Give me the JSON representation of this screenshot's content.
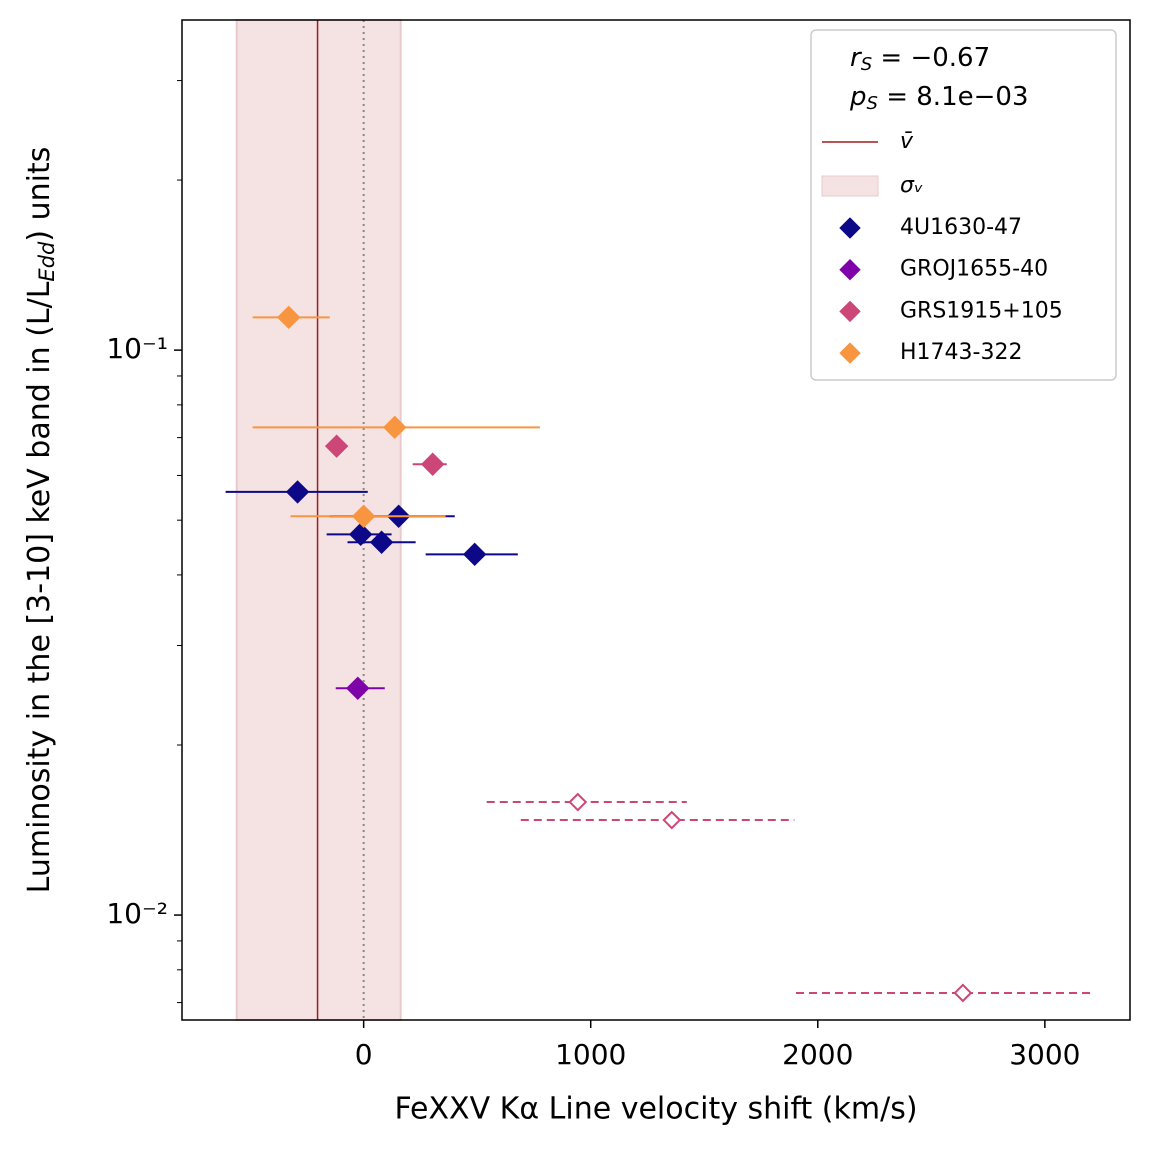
{
  "chart_data": {
    "type": "scatter",
    "x_label": "FeXXV Kα Line velocity shift (km/s)",
    "y_label": {
      "before": "Luminosity in the [3-10] keV band in (L/L",
      "sub": "Edd",
      "after": ") units"
    },
    "xlim": [
      -800,
      3375
    ],
    "ylim": [
      0.00652,
      0.384
    ],
    "y_scale": "log",
    "xticks": [
      0,
      1000,
      2000,
      3000
    ],
    "yticks": [
      {
        "value": 0.01,
        "label": "10⁻²"
      },
      {
        "value": 0.1,
        "label": "10⁻¹"
      }
    ],
    "yminorticks": [
      0.007,
      0.008,
      0.009,
      0.02,
      0.03,
      0.04,
      0.05,
      0.06,
      0.07,
      0.08,
      0.09,
      0.2,
      0.3
    ],
    "reference_line": 0,
    "mean": {
      "name": "v̄",
      "value": -203,
      "color": "#a01c1c"
    },
    "band": {
      "name": "σᵥ",
      "range": [
        -559,
        163
      ],
      "color": "#f5e3e4"
    },
    "stats": [
      {
        "symbol": "r",
        "sub": "S",
        "text": " = −0.67"
      },
      {
        "symbol": "p",
        "sub": "S",
        "text": " = 8.1e−03"
      }
    ],
    "series": [
      {
        "name": "4U1630-47",
        "color": "#0d0887",
        "x": [
          -291,
          154,
          -13,
          79,
          489
        ],
        "y": [
          0.0561,
          0.0508,
          0.0472,
          0.0457,
          0.0435
        ],
        "xerr": [
          [
            317,
            309
          ],
          [
            304,
            247
          ],
          [
            150,
            136
          ],
          [
            150,
            150
          ],
          [
            216,
            190
          ]
        ],
        "filled": [
          true,
          true,
          true,
          true,
          true
        ]
      },
      {
        "name": "GROJ1655-40",
        "color": "#7e03a8",
        "x": [
          -26
        ],
        "y": [
          0.0252
        ],
        "xerr": [
          [
            97,
            119
          ]
        ],
        "filled": [
          true
        ]
      },
      {
        "name": "GRS1915+105",
        "color": "#cc4778",
        "x": [
          -119,
          304,
          943,
          1357,
          2639
        ],
        "y": [
          0.0676,
          0.0628,
          0.01585,
          0.01473,
          0.00728
        ],
        "xerr": [
          null,
          [
            88,
            62
          ],
          [
            401,
            480
          ],
          [
            665,
            540
          ],
          [
            735,
            564
          ]
        ],
        "filled": [
          true,
          true,
          false,
          false,
          false
        ]
      },
      {
        "name": "H1743-322",
        "color": "#f89540",
        "x": [
          -330,
          137,
          0
        ],
        "y": [
          0.1143,
          0.073,
          0.0508
        ],
        "xerr": [
          [
            159,
            181
          ],
          [
            626,
            639
          ],
          [
            322,
            361
          ]
        ],
        "filled": [
          true,
          true,
          true
        ]
      }
    ]
  }
}
